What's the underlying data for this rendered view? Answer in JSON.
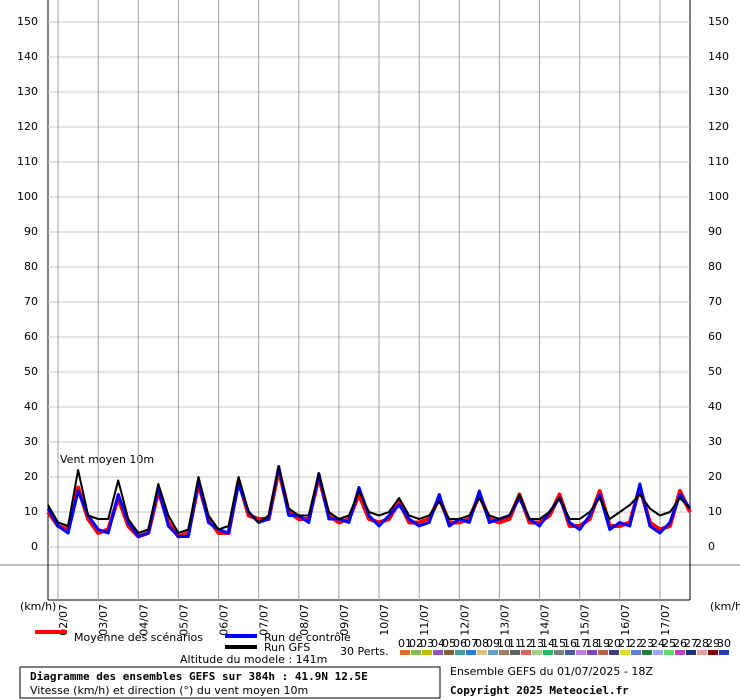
{
  "chart_data": {
    "type": "line",
    "title": "Diagramme des ensembles GEFS sur 384h : 41.9N 12.5E",
    "subtitle": "Vitesse (km/h) et direction (°) du vent moyen 10m",
    "run_label": "Ensemble GEFS du 01/07/2025 - 18Z",
    "copyright": "Copyright 2025 Meteociel.fr",
    "altitude": "Altitude du modele : 141m",
    "annotation": "Vent moyen 10m",
    "y_unit_left": "(km/h)",
    "y_unit_right": "(km/h)",
    "perts_label": "30 Perts.",
    "ylim": [
      0,
      150
    ],
    "yticks": [
      0,
      10,
      20,
      30,
      40,
      50,
      60,
      70,
      80,
      90,
      100,
      110,
      120,
      130,
      140,
      150
    ],
    "xlim": [
      0,
      384
    ],
    "xticks": [
      {
        "value": 6,
        "label": "02/07"
      },
      {
        "value": 30,
        "label": "03/07"
      },
      {
        "value": 54,
        "label": "04/07"
      },
      {
        "value": 78,
        "label": "05/07"
      },
      {
        "value": 102,
        "label": "06/07"
      },
      {
        "value": 126,
        "label": "07/07"
      },
      {
        "value": 150,
        "label": "08/07"
      },
      {
        "value": 174,
        "label": "09/07"
      },
      {
        "value": 198,
        "label": "10/07"
      },
      {
        "value": 222,
        "label": "11/07"
      },
      {
        "value": 246,
        "label": "12/07"
      },
      {
        "value": 270,
        "label": "13/07"
      },
      {
        "value": 294,
        "label": "14/07"
      },
      {
        "value": 318,
        "label": "15/07"
      },
      {
        "value": 342,
        "label": "16/07"
      },
      {
        "value": 366,
        "label": "17/07"
      }
    ],
    "grid": true,
    "x": [
      0,
      6,
      12,
      18,
      24,
      30,
      36,
      42,
      48,
      54,
      60,
      66,
      72,
      78,
      84,
      90,
      96,
      102,
      108,
      114,
      120,
      126,
      132,
      138,
      144,
      150,
      156,
      162,
      168,
      174,
      180,
      186,
      192,
      198,
      204,
      210,
      216,
      222,
      228,
      234,
      240,
      246,
      252,
      258,
      264,
      270,
      276,
      282,
      288,
      294,
      300,
      306,
      312,
      318,
      324,
      330,
      336,
      342,
      348,
      354,
      360,
      366,
      372,
      378,
      384
    ],
    "series": [
      {
        "name": "Moyenne des scénarios",
        "color": "#ff0000",
        "width": 4,
        "values": [
          10,
          6,
          5,
          17,
          8,
          4,
          5,
          14,
          6,
          3,
          4,
          16,
          7,
          3,
          4,
          18,
          8,
          4,
          4,
          19,
          9,
          8,
          8,
          22,
          10,
          8,
          8,
          20,
          9,
          7,
          8,
          15,
          8,
          7,
          8,
          13,
          7,
          7,
          8,
          14,
          7,
          7,
          8,
          15,
          8,
          7,
          8,
          15,
          7,
          7,
          9,
          15,
          6,
          6,
          8,
          16,
          6,
          6,
          7,
          17,
          7,
          5,
          6,
          16,
          10
        ]
      },
      {
        "name": "Run de contrôle",
        "color": "#0000ff",
        "width": 3,
        "values": [
          11,
          6,
          4,
          16,
          9,
          5,
          4,
          15,
          7,
          3,
          4,
          17,
          6,
          3,
          3,
          19,
          7,
          5,
          4,
          18,
          10,
          7,
          8,
          23,
          9,
          9,
          7,
          21,
          8,
          8,
          7,
          17,
          9,
          6,
          9,
          12,
          8,
          6,
          7,
          15,
          6,
          8,
          7,
          16,
          7,
          8,
          9,
          14,
          8,
          6,
          10,
          14,
          7,
          5,
          9,
          15,
          5,
          7,
          6,
          18,
          6,
          4,
          7,
          15,
          11
        ]
      },
      {
        "name": "Run GFS",
        "color": "#000000",
        "width": 2,
        "values": [
          12,
          7,
          6,
          22,
          9,
          8,
          8,
          19,
          8,
          4,
          5,
          18,
          9,
          4,
          5,
          20,
          9,
          5,
          6,
          20,
          10,
          7,
          9,
          23,
          11,
          9,
          9,
          21,
          10,
          8,
          9,
          16,
          10,
          9,
          10,
          14,
          9,
          8,
          9,
          13,
          8,
          8,
          9,
          14,
          9,
          8,
          9,
          15,
          8,
          8,
          10,
          14,
          8,
          8,
          10,
          14,
          8,
          10,
          12,
          15,
          11,
          9,
          10,
          14,
          11
        ]
      }
    ],
    "perturbations": [
      {
        "name": "01",
        "color": "#e07020"
      },
      {
        "name": "02",
        "color": "#80c040"
      },
      {
        "name": "03",
        "color": "#c0c000"
      },
      {
        "name": "04",
        "color": "#9050c0"
      },
      {
        "name": "05",
        "color": "#806030"
      },
      {
        "name": "06",
        "color": "#40a0a0"
      },
      {
        "name": "07",
        "color": "#2080e0"
      },
      {
        "name": "08",
        "color": "#e0c080"
      },
      {
        "name": "09",
        "color": "#60a0c0"
      },
      {
        "name": "10",
        "color": "#a08060"
      },
      {
        "name": "11",
        "color": "#606060"
      },
      {
        "name": "12",
        "color": "#e06060"
      },
      {
        "name": "13",
        "color": "#a0d080"
      },
      {
        "name": "14",
        "color": "#20c060"
      },
      {
        "name": "15",
        "color": "#808080"
      },
      {
        "name": "16",
        "color": "#4060a0"
      },
      {
        "name": "17",
        "color": "#c080e0"
      },
      {
        "name": "18",
        "color": "#8040c0"
      },
      {
        "name": "19",
        "color": "#c06040"
      },
      {
        "name": "20",
        "color": "#404080"
      },
      {
        "name": "21",
        "color": "#e0e020"
      },
      {
        "name": "22",
        "color": "#6080e0"
      },
      {
        "name": "23",
        "color": "#208040"
      },
      {
        "name": "24",
        "color": "#a0a0ff"
      },
      {
        "name": "25",
        "color": "#60e060"
      },
      {
        "name": "26",
        "color": "#c040c0"
      },
      {
        "name": "27",
        "color": "#203080"
      },
      {
        "name": "28",
        "color": "#e0a0a0"
      },
      {
        "name": "29",
        "color": "#800000"
      },
      {
        "name": "30",
        "color": "#2040c0"
      }
    ]
  }
}
